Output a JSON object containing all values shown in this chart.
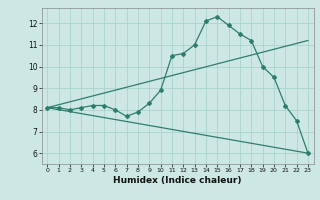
{
  "xlabel": "Humidex (Indice chaleur)",
  "ylabel": "",
  "bg_color": "#cde8e4",
  "line_color": "#2e7d6e",
  "grid_color": "#aad4cc",
  "xlim": [
    -0.5,
    23.5
  ],
  "ylim": [
    5.5,
    12.7
  ],
  "xticks": [
    0,
    1,
    2,
    3,
    4,
    5,
    6,
    7,
    8,
    9,
    10,
    11,
    12,
    13,
    14,
    15,
    16,
    17,
    18,
    19,
    20,
    21,
    22,
    23
  ],
  "yticks": [
    6,
    7,
    8,
    9,
    10,
    11,
    12
  ],
  "series": [
    {
      "x": [
        0,
        1,
        2,
        3,
        4,
        5,
        6,
        7,
        8,
        9,
        10,
        11,
        12,
        13,
        14,
        15,
        16,
        17,
        18,
        19,
        20,
        21,
        22,
        23
      ],
      "y": [
        8.1,
        8.1,
        8.0,
        8.1,
        8.2,
        8.2,
        8.0,
        7.7,
        7.9,
        8.3,
        8.9,
        10.5,
        10.6,
        11.0,
        12.1,
        12.3,
        11.9,
        11.5,
        11.2,
        10.0,
        9.5,
        8.2,
        7.5,
        6.0
      ]
    },
    {
      "x": [
        0,
        23
      ],
      "y": [
        8.1,
        11.2
      ]
    },
    {
      "x": [
        0,
        23
      ],
      "y": [
        8.1,
        6.0
      ]
    }
  ]
}
